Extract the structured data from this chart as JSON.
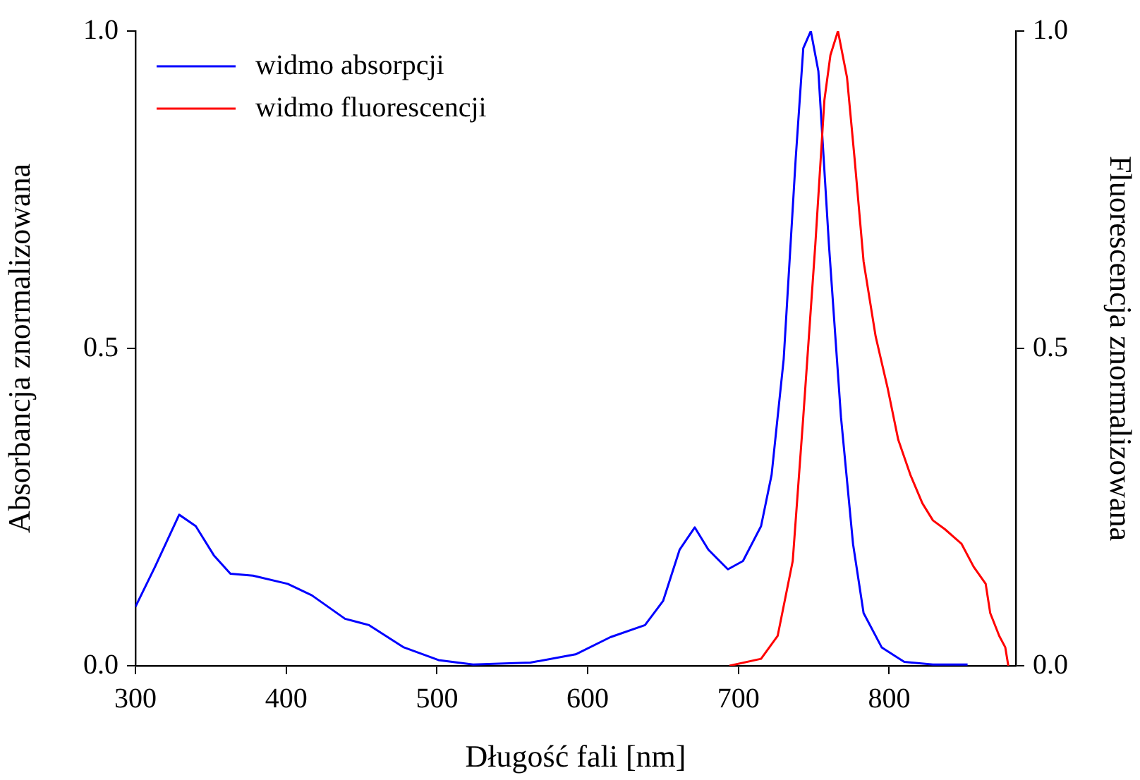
{
  "chart_data": {
    "type": "line",
    "xlabel": "Długość fali [nm]",
    "ylabel": "Absorbancja znormalizowana",
    "y2label": "Fluorescencja znormalizowana",
    "xlim": [
      300,
      884
    ],
    "xticks": [
      300,
      400,
      500,
      600,
      700,
      800
    ],
    "ylim": [
      0,
      1
    ],
    "yticks": [
      {
        "value": 0,
        "label": "0.0"
      },
      {
        "value": 0.5,
        "label": "0.5"
      },
      {
        "value": 1,
        "label": "1.0"
      }
    ],
    "y2lim": [
      0,
      1
    ],
    "y2ticks": [
      {
        "value": 0,
        "label": "0.0"
      },
      {
        "value": 0.5,
        "label": "0.5"
      },
      {
        "value": 1,
        "label": "1.0"
      }
    ],
    "grid": false,
    "legend": "top left",
    "marker": "none",
    "line_style": "solid",
    "series": [
      {
        "name": "widmo absorpcji",
        "color": "#0000ff",
        "x": [
          300,
          313,
          329,
          340,
          352,
          363,
          378,
          401,
          417,
          439,
          455,
          478,
          501,
          524,
          562,
          592,
          615,
          638,
          650,
          661,
          671,
          680,
          693,
          703,
          715,
          722,
          730,
          738,
          743,
          748,
          753,
          760,
          768,
          776,
          783,
          795,
          810,
          829,
          852
        ],
        "values": [
          0.093,
          0.156,
          0.238,
          0.22,
          0.174,
          0.145,
          0.142,
          0.129,
          0.111,
          0.074,
          0.064,
          0.029,
          0.009,
          0.002,
          0.005,
          0.018,
          0.045,
          0.064,
          0.102,
          0.183,
          0.218,
          0.183,
          0.152,
          0.165,
          0.22,
          0.301,
          0.483,
          0.8,
          0.973,
          1.0,
          0.937,
          0.664,
          0.392,
          0.192,
          0.083,
          0.029,
          0.006,
          0.002,
          0.002
        ]
      },
      {
        "name": "widmo fluorescencji",
        "color": "#ff0000",
        "axis": "y2",
        "x": [
          694,
          715,
          726,
          736,
          743,
          751,
          757,
          761,
          766,
          772,
          777,
          783,
          791,
          799,
          806,
          814,
          822,
          829,
          837,
          848,
          856,
          864,
          867,
          873,
          877,
          879
        ],
        "values": [
          0,
          0.011,
          0.047,
          0.165,
          0.392,
          0.664,
          0.891,
          0.962,
          1.0,
          0.927,
          0.8,
          0.637,
          0.519,
          0.437,
          0.356,
          0.301,
          0.256,
          0.229,
          0.215,
          0.192,
          0.156,
          0.129,
          0.083,
          0.047,
          0.029,
          0
        ]
      }
    ]
  }
}
